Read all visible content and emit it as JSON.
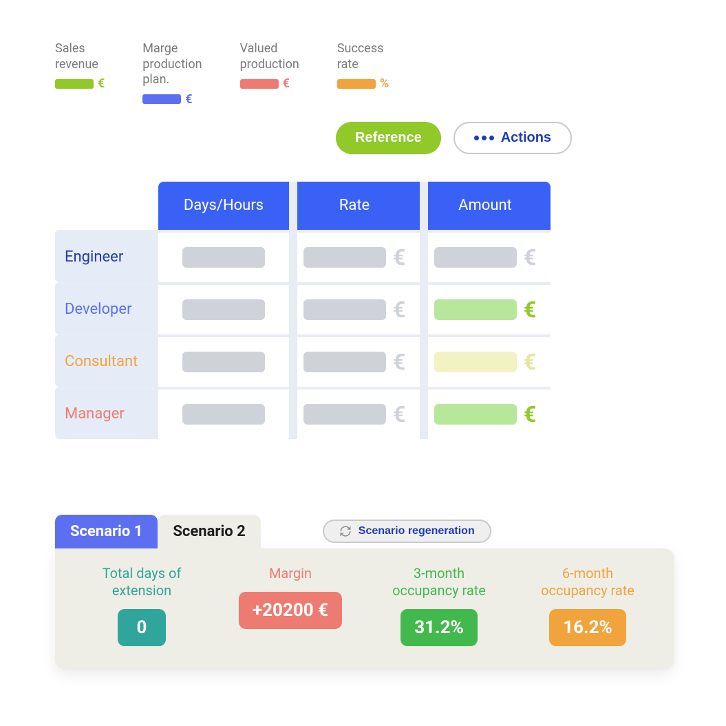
{
  "colors": {
    "blue_header": "#3a61f5",
    "purple_tab": "#5c6ff0",
    "green": "#90c928",
    "teal": "#2fa59b",
    "coral": "#ee7b72",
    "orange": "#f1a33c",
    "green_bright": "#42b94d",
    "actions_blue": "#1e3cb3",
    "grey_text": "#7a7a7a",
    "panel_bg": "#efeee6",
    "skeleton": "#cfd3d9"
  },
  "legend": [
    {
      "label": "Sales\nrevenue",
      "swatch": "#90c928",
      "unit": "€",
      "unit_color": "#90c928"
    },
    {
      "label": "Marge\nproduction\nplan.",
      "swatch": "#5c6ff0",
      "unit": "€",
      "unit_color": "#5c6ff0"
    },
    {
      "label": "Valued\nproduction",
      "swatch": "#ee7b72",
      "unit": "€",
      "unit_color": "#ee7b72"
    },
    {
      "label": "Success\nrate",
      "swatch": "#f1a33c",
      "unit": "%",
      "unit_color": "#f1a33c"
    }
  ],
  "buttons": {
    "reference": "Reference",
    "actions": "Actions",
    "regen": "Scenario regeneration"
  },
  "table": {
    "columns": [
      "Days/Hours",
      "Rate",
      "Amount"
    ],
    "roles": [
      {
        "name": "Engineer",
        "color": "#1e3cb3",
        "amount_style": "grey"
      },
      {
        "name": "Developer",
        "color": "#5c6ff0",
        "amount_style": "green"
      },
      {
        "name": "Consultant",
        "color": "#f1a33c",
        "amount_style": "yellow"
      },
      {
        "name": "Manager",
        "color": "#ee7b72",
        "amount_style": "green"
      }
    ]
  },
  "scenario": {
    "tabs": [
      "Scenario 1",
      "Scenario 2"
    ],
    "active_tab": 0,
    "kpis": [
      {
        "label": "Total days of\nextension",
        "value": "0",
        "label_color": "#2fa59b",
        "chip_color": "#2fa59b"
      },
      {
        "label": "Margin",
        "value": "+20200 €",
        "label_color": "#ee7b72",
        "chip_color": "#ee7b72"
      },
      {
        "label": "3-month\noccupancy rate",
        "value": "31.2%",
        "label_color": "#42b94d",
        "chip_color": "#42b94d"
      },
      {
        "label": "6-month\noccupancy rate",
        "value": "16.2%",
        "label_color": "#f1a33c",
        "chip_color": "#f1a33c"
      }
    ]
  }
}
